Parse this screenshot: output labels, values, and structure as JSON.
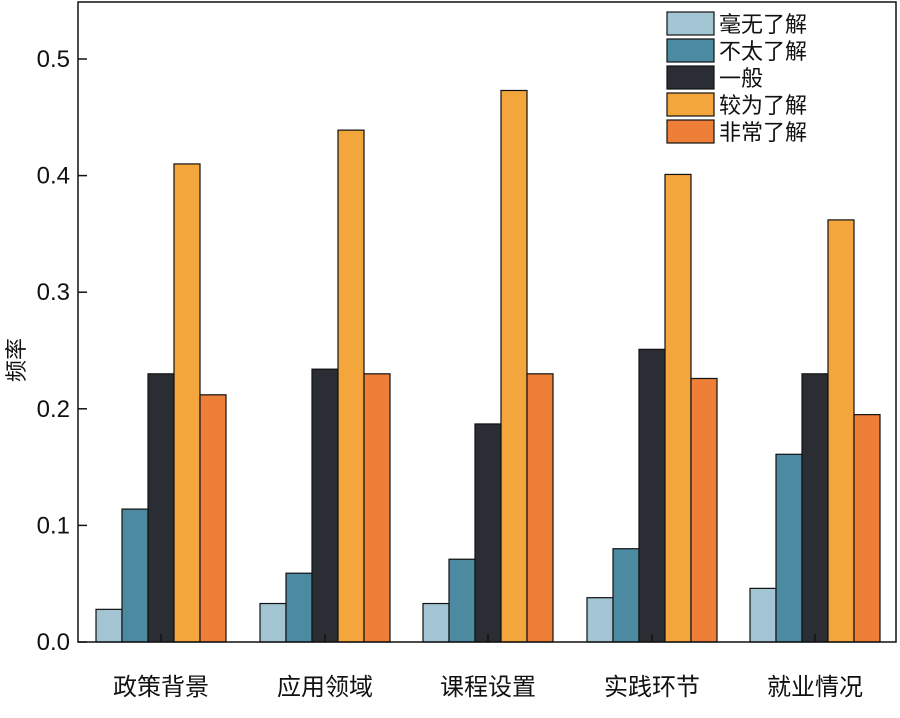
{
  "chart_data": {
    "type": "bar",
    "title": "",
    "xlabel": "",
    "ylabel": "频率",
    "ylim": [
      0,
      0.55
    ],
    "yticks": [
      "0.0",
      "0.1",
      "0.2",
      "0.3",
      "0.4",
      "0.5"
    ],
    "grid": false,
    "legend_position": "top-right",
    "categories": [
      "政策背景",
      "应用领域",
      "课程设置",
      "实践环节",
      "就业情况"
    ],
    "series": [
      {
        "name": "毫无了解",
        "color": "#a3c4d3",
        "values": [
          0.028,
          0.033,
          0.033,
          0.038,
          0.046
        ]
      },
      {
        "name": "不太了解",
        "color": "#4b8aa0",
        "values": [
          0.114,
          0.059,
          0.071,
          0.08,
          0.161
        ]
      },
      {
        "name": "一般",
        "color": "#2a2d33",
        "values": [
          0.23,
          0.234,
          0.187,
          0.251,
          0.23
        ]
      },
      {
        "name": "较为了解",
        "color": "#f3a63b",
        "values": [
          0.41,
          0.439,
          0.473,
          0.401,
          0.362
        ]
      },
      {
        "name": "非常了解",
        "color": "#ed7f38",
        "values": [
          0.212,
          0.23,
          0.23,
          0.226,
          0.195
        ]
      }
    ]
  }
}
